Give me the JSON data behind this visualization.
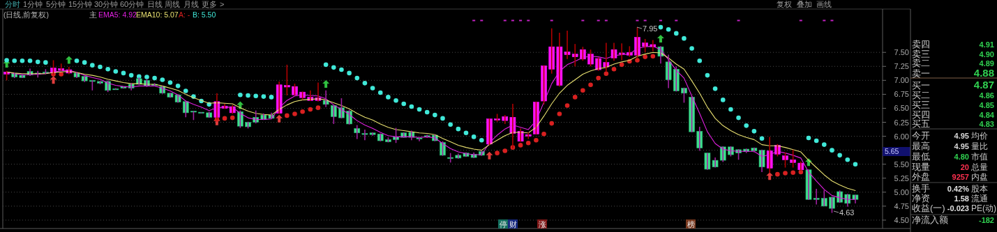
{
  "chart_data": [
    {
      "type": "candlestick",
      "categories": [
        null,
        null,
        null,
        null,
        null,
        null,
        null,
        null,
        null,
        null,
        null,
        null,
        null,
        null,
        null,
        null,
        null,
        null,
        null,
        null,
        null,
        null,
        null,
        null,
        null,
        null,
        null,
        null,
        null,
        null,
        null,
        null,
        null,
        null,
        null,
        null,
        null,
        null,
        null,
        null,
        null,
        null,
        null,
        null,
        null,
        null,
        null,
        null,
        null,
        null,
        null,
        null,
        null,
        null,
        null,
        null,
        null,
        null,
        null,
        null,
        null,
        null,
        null,
        null,
        null,
        null,
        null,
        null,
        null,
        null,
        null,
        null,
        null,
        null,
        null,
        null,
        null,
        null,
        null,
        null,
        null,
        null,
        null,
        null,
        null,
        null,
        null,
        null,
        null,
        null,
        null,
        null,
        null,
        null,
        null,
        null,
        null,
        null,
        null,
        null,
        null,
        null,
        null,
        null,
        null,
        null,
        null,
        null,
        null,
        null
      ],
      "ohlc": [
        [
          7.11,
          7.17,
          7.0,
          7.15
        ],
        [
          7.12,
          7.14,
          7.04,
          7.06
        ],
        [
          7.09,
          7.12,
          7.04,
          7.05
        ],
        [
          7.16,
          7.21,
          7.08,
          7.1
        ],
        [
          7.13,
          7.17,
          7.05,
          7.12
        ],
        [
          7.15,
          7.2,
          7.11,
          7.14
        ],
        [
          7.14,
          7.36,
          7.1,
          7.22
        ],
        [
          7.18,
          7.3,
          7.17,
          7.21
        ],
        [
          7.13,
          7.24,
          7.11,
          7.19
        ],
        [
          7.13,
          7.15,
          7.04,
          7.06
        ],
        [
          7.07,
          7.09,
          6.97,
          6.99
        ],
        [
          7.0,
          7.0,
          6.82,
          6.98
        ],
        [
          6.98,
          6.99,
          6.93,
          6.95
        ],
        [
          6.98,
          7.0,
          6.79,
          6.82
        ],
        [
          6.85,
          6.86,
          6.83,
          6.84
        ],
        [
          6.89,
          6.89,
          6.85,
          6.86
        ],
        [
          6.93,
          6.95,
          6.82,
          6.86
        ],
        [
          7.03,
          7.05,
          6.92,
          6.93
        ],
        [
          7.0,
          7.02,
          6.88,
          6.9
        ],
        [
          6.93,
          6.95,
          6.9,
          6.91
        ],
        [
          6.89,
          6.9,
          6.76,
          6.77
        ],
        [
          6.77,
          6.78,
          6.69,
          6.7
        ],
        [
          6.74,
          6.75,
          6.6,
          6.61
        ],
        [
          6.62,
          6.64,
          6.34,
          6.42
        ],
        [
          6.45,
          6.45,
          6.29,
          6.44
        ],
        [
          6.43,
          6.43,
          6.41,
          6.42
        ],
        [
          6.42,
          6.44,
          6.33,
          6.34
        ],
        [
          6.34,
          6.77,
          6.3,
          6.62
        ],
        [
          6.5,
          6.58,
          6.49,
          6.54
        ],
        [
          6.42,
          6.56,
          6.4,
          6.53
        ],
        [
          6.44,
          6.46,
          6.15,
          6.18
        ],
        [
          6.25,
          6.26,
          6.14,
          6.17
        ],
        [
          6.34,
          6.46,
          6.23,
          6.25
        ],
        [
          6.38,
          6.41,
          6.29,
          6.3
        ],
        [
          6.38,
          6.42,
          6.31,
          6.32
        ],
        [
          6.41,
          6.98,
          6.4,
          6.92
        ],
        [
          6.88,
          7.28,
          6.73,
          6.91
        ],
        [
          6.74,
          6.94,
          6.73,
          6.89
        ],
        [
          6.69,
          6.8,
          6.65,
          6.79
        ],
        [
          6.64,
          6.82,
          6.63,
          6.7
        ],
        [
          6.64,
          6.96,
          6.62,
          6.69
        ],
        [
          6.64,
          6.82,
          6.52,
          6.57
        ],
        [
          6.55,
          6.56,
          6.22,
          6.35
        ],
        [
          6.51,
          6.68,
          6.32,
          6.33
        ],
        [
          6.45,
          6.47,
          6.21,
          6.22
        ],
        [
          6.14,
          6.2,
          5.95,
          6.06
        ],
        [
          6.05,
          6.12,
          5.93,
          6.04
        ],
        [
          6.06,
          6.07,
          6.01,
          6.03
        ],
        [
          6.04,
          6.05,
          5.91,
          5.92
        ],
        [
          5.94,
          5.98,
          5.89,
          5.9
        ],
        [
          5.99,
          6.15,
          5.88,
          5.94
        ],
        [
          6.06,
          6.07,
          5.97,
          5.98
        ],
        [
          6.07,
          6.1,
          5.93,
          5.98
        ],
        [
          5.97,
          5.98,
          5.91,
          5.96
        ],
        [
          6.01,
          6.03,
          5.97,
          6.0
        ],
        [
          6.02,
          6.03,
          5.91,
          5.92
        ],
        [
          5.89,
          5.91,
          5.65,
          5.66
        ],
        [
          5.62,
          5.7,
          5.53,
          5.61
        ],
        [
          5.66,
          5.69,
          5.6,
          5.61
        ],
        [
          5.7,
          5.71,
          5.63,
          5.64
        ],
        [
          5.68,
          5.71,
          5.61,
          5.62
        ],
        [
          5.73,
          5.74,
          5.65,
          5.66
        ],
        [
          5.86,
          6.32,
          5.84,
          6.31
        ],
        [
          6.29,
          6.4,
          6.26,
          6.31
        ],
        [
          6.28,
          6.38,
          6.22,
          6.35
        ],
        [
          6.05,
          6.58,
          5.78,
          6.34
        ],
        [
          5.91,
          6.14,
          5.9,
          6.09
        ],
        [
          6.0,
          6.07,
          5.95,
          6.03
        ],
        [
          6.04,
          6.62,
          6.03,
          6.61
        ],
        [
          6.63,
          7.27,
          6.57,
          7.26
        ],
        [
          7.2,
          7.93,
          7.12,
          7.6
        ],
        [
          6.91,
          7.85,
          6.89,
          7.6
        ],
        [
          7.46,
          7.89,
          7.38,
          7.51
        ],
        [
          7.42,
          7.65,
          7.25,
          7.47
        ],
        [
          7.38,
          7.6,
          7.35,
          7.55
        ],
        [
          7.29,
          7.55,
          7.25,
          7.47
        ],
        [
          7.19,
          7.41,
          7.17,
          7.39
        ],
        [
          7.24,
          7.67,
          7.15,
          7.32
        ],
        [
          7.4,
          7.67,
          7.35,
          7.55
        ],
        [
          7.47,
          7.66,
          7.36,
          7.49
        ],
        [
          7.45,
          7.61,
          7.42,
          7.5
        ],
        [
          7.45,
          7.95,
          7.4,
          7.77
        ],
        [
          7.61,
          7.74,
          7.5,
          7.67
        ],
        [
          7.6,
          7.72,
          7.52,
          7.64
        ],
        [
          7.6,
          7.61,
          7.3,
          7.43
        ],
        [
          7.33,
          7.46,
          6.86,
          7.01
        ],
        [
          7.2,
          7.25,
          6.8,
          6.81
        ],
        [
          6.86,
          6.87,
          6.6,
          6.77
        ],
        [
          6.7,
          6.72,
          6.07,
          6.08
        ],
        [
          6.09,
          6.17,
          5.74,
          5.79
        ],
        [
          5.7,
          5.7,
          5.4,
          5.41
        ],
        [
          5.57,
          5.62,
          5.44,
          5.45
        ],
        [
          5.81,
          5.82,
          5.54,
          5.57
        ],
        [
          5.81,
          5.82,
          5.64,
          5.67
        ],
        [
          5.76,
          5.77,
          5.58,
          5.7
        ],
        [
          5.77,
          5.78,
          5.7,
          5.73
        ],
        [
          5.79,
          5.8,
          5.71,
          5.74
        ],
        [
          5.75,
          5.76,
          5.36,
          5.45
        ],
        [
          5.43,
          5.99,
          5.34,
          5.74
        ],
        [
          5.68,
          5.86,
          5.64,
          5.84
        ],
        [
          5.58,
          5.71,
          5.44,
          5.65
        ],
        [
          5.53,
          5.76,
          5.44,
          5.58
        ],
        [
          5.4,
          5.55,
          5.38,
          5.52
        ],
        [
          5.4,
          5.41,
          4.86,
          4.87
        ],
        [
          4.89,
          5.06,
          4.78,
          4.87
        ],
        [
          4.89,
          5.04,
          4.75,
          4.75
        ],
        [
          4.91,
          4.92,
          4.63,
          4.71
        ],
        [
          5.01,
          5.03,
          4.81,
          4.82
        ],
        [
          4.96,
          4.97,
          4.74,
          4.8
        ],
        [
          4.95,
          4.95,
          4.8,
          4.87
        ]
      ],
      "series": [
        {
          "type": "line",
          "color": "#e020e0",
          "values": [
            7.15,
            7.12,
            7.1,
            7.1,
            7.11,
            7.12,
            7.15,
            7.17,
            7.18,
            7.14,
            7.09,
            7.05,
            7.02,
            6.95,
            6.91,
            6.89,
            6.88,
            6.9,
            6.9,
            6.9,
            6.86,
            6.81,
            6.74,
            6.63,
            6.57,
            6.52,
            6.46,
            6.51,
            6.52,
            6.52,
            6.41,
            6.33,
            6.3,
            6.3,
            6.31,
            6.51,
            6.64,
            6.72,
            6.74,
            6.73,
            6.72,
            6.67,
            6.56,
            6.48,
            6.39,
            6.28,
            6.2,
            6.14,
            6.07,
            6.01,
            5.99,
            5.99,
            5.99,
            5.98,
            5.99,
            5.97,
            5.87,
            5.78,
            5.72,
            5.69,
            5.67,
            5.67,
            5.88,
            6.02,
            6.13,
            6.2,
            6.16,
            6.12,
            6.28,
            6.61,
            6.94,
            7.16,
            7.28,
            7.34,
            7.41,
            7.43,
            7.42,
            7.39,
            7.44,
            7.46,
            7.47,
            7.57,
            7.6,
            7.61,
            7.55,
            7.37,
            7.18,
            7.04,
            6.72,
            6.41,
            6.08,
            5.87,
            5.77,
            5.74,
            5.73,
            5.73,
            5.73,
            5.64,
            5.67,
            5.73,
            5.7,
            5.66,
            5.61,
            5.36,
            5.2,
            5.05,
            4.94,
            4.9,
            4.87,
            4.87
          ]
        },
        {
          "type": "line",
          "color": "#e8e070",
          "values": [
            7.15,
            7.13,
            7.12,
            7.12,
            7.12,
            7.12,
            7.14,
            7.15,
            7.16,
            7.14,
            7.11,
            7.09,
            7.06,
            7.02,
            6.99,
            6.96,
            6.94,
            6.94,
            6.93,
            6.93,
            6.9,
            6.86,
            6.82,
            6.75,
            6.69,
            6.64,
            6.59,
            6.6,
            6.59,
            6.58,
            6.51,
            6.45,
            6.41,
            6.39,
            6.38,
            6.48,
            6.56,
            6.62,
            6.65,
            6.66,
            6.67,
            6.65,
            6.6,
            6.55,
            6.49,
            6.41,
            6.34,
            6.29,
            6.22,
            6.16,
            6.12,
            6.1,
            6.08,
            6.06,
            6.05,
            6.03,
            5.96,
            5.9,
            5.84,
            5.8,
            5.77,
            5.75,
            5.85,
            5.93,
            6.01,
            6.07,
            6.07,
            6.06,
            6.16,
            6.36,
            6.58,
            6.77,
            6.91,
            7.01,
            7.11,
            7.17,
            7.21,
            7.23,
            7.29,
            7.33,
            7.36,
            7.43,
            7.47,
            7.5,
            7.49,
            7.4,
            7.29,
            7.2,
            6.99,
            6.77,
            6.52,
            6.32,
            6.19,
            6.1,
            6.03,
            5.98,
            5.94,
            5.85,
            5.83,
            5.83,
            5.8,
            5.76,
            5.72,
            5.57,
            5.44,
            5.31,
            5.2,
            5.13,
            5.07,
            5.03
          ]
        },
        {
          "type": "scatter",
          "marker": "circle",
          "color": "#d82020",
          "values": [
            null,
            null,
            null,
            null,
            null,
            null,
            7.11,
            7.11,
            null,
            null,
            null,
            null,
            null,
            null,
            null,
            null,
            null,
            null,
            null,
            null,
            null,
            null,
            null,
            null,
            null,
            null,
            null,
            6.3,
            6.32,
            6.33,
            null,
            null,
            null,
            null,
            null,
            null,
            6.37,
            6.4,
            6.44,
            6.48,
            6.51,
            null,
            null,
            null,
            null,
            null,
            null,
            null,
            null,
            null,
            null,
            null,
            null,
            null,
            null,
            null,
            null,
            null,
            null,
            null,
            null,
            null,
            null,
            5.7,
            5.74,
            5.8,
            5.84,
            5.88,
            5.93,
            6.04,
            6.23,
            6.4,
            6.55,
            6.7,
            6.82,
            6.92,
            7.04,
            7.12,
            7.2,
            7.28,
            7.34,
            7.36,
            7.42,
            7.43,
            null,
            null,
            null,
            null,
            null,
            null,
            null,
            null,
            null,
            null,
            null,
            null,
            null,
            null,
            null,
            5.32,
            5.34,
            5.35,
            5.36,
            null,
            null,
            null,
            null,
            null,
            null,
            null
          ]
        },
        {
          "type": "scatter",
          "marker": "circle",
          "color": "#40e8d8",
          "values": [
            7.36,
            7.35,
            7.35,
            7.35,
            7.33,
            7.32,
            null,
            null,
            null,
            7.35,
            7.32,
            7.27,
            7.24,
            7.2,
            7.16,
            7.13,
            7.09,
            7.07,
            7.06,
            7.04,
            7.01,
            6.96,
            6.9,
            6.81,
            6.71,
            6.63,
            6.57,
            null,
            null,
            null,
            6.74,
            6.73,
            6.72,
            6.71,
            6.7,
            null,
            null,
            null,
            null,
            null,
            null,
            7.28,
            7.23,
            7.19,
            7.13,
            7.04,
            6.95,
            6.86,
            6.78,
            6.7,
            6.64,
            6.58,
            6.53,
            6.48,
            6.43,
            6.38,
            6.32,
            6.21,
            6.13,
            6.06,
            5.99,
            5.93,
            null,
            null,
            null,
            null,
            null,
            null,
            null,
            null,
            null,
            null,
            null,
            null,
            null,
            null,
            null,
            null,
            null,
            null,
            null,
            null,
            null,
            null,
            7.95,
            7.91,
            7.84,
            7.75,
            7.57,
            7.35,
            7.09,
            6.85,
            6.65,
            6.48,
            6.33,
            6.19,
            6.09,
            5.96,
            null,
            null,
            null,
            null,
            null,
            5.97,
            5.92,
            5.85,
            5.75,
            5.66,
            5.58,
            5.5
          ]
        },
        {
          "type": "scatter",
          "marker": "triangle",
          "color": "#e03c3c",
          "values": [
            null,
            null,
            null,
            null,
            null,
            null,
            7.0,
            null,
            null,
            null,
            null,
            null,
            null,
            null,
            null,
            null,
            null,
            null,
            null,
            null,
            null,
            null,
            null,
            null,
            null,
            null,
            null,
            6.26,
            null,
            null,
            null,
            null,
            null,
            null,
            null,
            6.31,
            null,
            null,
            null,
            null,
            null,
            null,
            null,
            null,
            null,
            null,
            null,
            null,
            null,
            null,
            null,
            null,
            null,
            null,
            null,
            null,
            null,
            null,
            null,
            null,
            null,
            null,
            5.65,
            null,
            null,
            null,
            null,
            null,
            null,
            null,
            null,
            null,
            null,
            null,
            null,
            null,
            null,
            null,
            null,
            null,
            null,
            null,
            null,
            null,
            null,
            null,
            null,
            null,
            null,
            null,
            null,
            null,
            null,
            null,
            null,
            null,
            null,
            null,
            5.28,
            null,
            null,
            null,
            null,
            null,
            null,
            null,
            null,
            null,
            null,
            null
          ]
        },
        {
          "type": "scatter",
          "marker": "triangle",
          "color": "#30c040",
          "values": [
            7.29,
            null,
            null,
            null,
            null,
            null,
            null,
            null,
            7.36,
            null,
            null,
            null,
            null,
            null,
            null,
            null,
            null,
            null,
            null,
            null,
            null,
            null,
            null,
            null,
            null,
            null,
            null,
            null,
            null,
            null,
            6.55,
            null,
            null,
            null,
            null,
            null,
            null,
            null,
            null,
            null,
            null,
            6.93,
            null,
            null,
            null,
            null,
            null,
            null,
            null,
            null,
            null,
            null,
            null,
            null,
            null,
            null,
            null,
            null,
            null,
            null,
            null,
            null,
            null,
            null,
            null,
            null,
            null,
            null,
            null,
            null,
            null,
            null,
            null,
            null,
            null,
            null,
            null,
            null,
            null,
            null,
            null,
            null,
            null,
            null,
            7.74,
            null,
            null,
            null,
            null,
            null,
            null,
            null,
            null,
            null,
            null,
            null,
            null,
            null,
            null,
            null,
            null,
            null,
            null,
            5.53,
            null,
            null,
            null,
            null,
            null,
            null
          ]
        },
        {
          "type": "scatter",
          "marker": "square",
          "color": "#c020c0",
          "values": [
            null,
            null,
            null,
            null,
            null,
            null,
            null,
            null,
            null,
            null,
            null,
            null,
            null,
            null,
            null,
            null,
            null,
            null,
            null,
            null,
            null,
            null,
            null,
            null,
            null,
            null,
            null,
            null,
            null,
            null,
            null,
            null,
            null,
            null,
            null,
            null,
            null,
            null,
            null,
            null,
            null,
            null,
            null,
            null,
            null,
            null,
            null,
            null,
            null,
            null,
            null,
            null,
            null,
            null,
            null,
            null,
            null,
            null,
            null,
            null,
            8.07,
            8.07,
            null,
            null,
            8.07,
            8.07,
            8.07,
            8.07,
            null,
            null,
            8.07,
            null,
            null,
            null,
            8.07,
            null,
            8.07,
            8.07,
            null,
            null,
            null,
            8.07,
            8.07,
            null,
            8.07,
            null,
            8.07,
            null,
            null,
            null,
            null,
            null,
            null,
            null,
            8.07,
            null,
            null,
            null,
            null,
            null,
            null,
            null,
            8.07,
            null,
            null,
            8.07,
            8.07,
            null,
            null,
            null
          ]
        }
      ],
      "ylim": [
        4.35,
        8.25
      ],
      "yticks": [
        {
          "value": 4.5,
          "label": "4.50"
        },
        4.75,
        {
          "value": 5.0,
          "label": "5.00"
        },
        5.25,
        {
          "value": 5.5,
          "label": "5.50"
        },
        {
          "value": 5.75,
          "label": null
        },
        {
          "value": 6.0,
          "label": "6.00"
        },
        6.25,
        {
          "value": 6.5,
          "label": "6.50"
        },
        6.75,
        {
          "value": 7.0,
          "label": "7.00"
        },
        7.25,
        {
          "value": 7.5,
          "label": "7.50"
        }
      ],
      "grid": "y",
      "annotations": [
        "分时",
        "1分钟",
        "5分钟",
        "15分钟",
        "30分钟",
        "60分钟",
        "日线",
        "周线",
        "月线",
        "更多",
        ">",
        "复权",
        "叠加",
        "画线",
        "(日线,前复权)",
        "主",
        "EMA5: 4.92",
        "EMA10: 5.07",
        "A: -",
        "B: 5.50",
        "7.95",
        "4.63",
        "停",
        "财",
        "涨",
        "榜",
        "5.65",
        "卖四",
        "4.91",
        "卖三",
        "4.90",
        "卖二",
        "4.89",
        "卖一",
        "4.88",
        "买一",
        "4.87",
        "买二",
        "4.86",
        "买三",
        "4.85",
        "买四",
        "4.84",
        "买五",
        "4.83",
        "今开",
        "4.95",
        "均价",
        "最高",
        "4.95",
        "量比",
        "最低",
        "4.80",
        "市值",
        "现量",
        "20",
        "总量",
        "外盘",
        "9257",
        "内盘",
        "换手",
        "0.42%",
        "股本",
        "净资",
        "1.58",
        "流通",
        "收益(一)",
        "-0.023",
        "PE(动)",
        "净流入额",
        "-182"
      ]
    }
  ]
}
